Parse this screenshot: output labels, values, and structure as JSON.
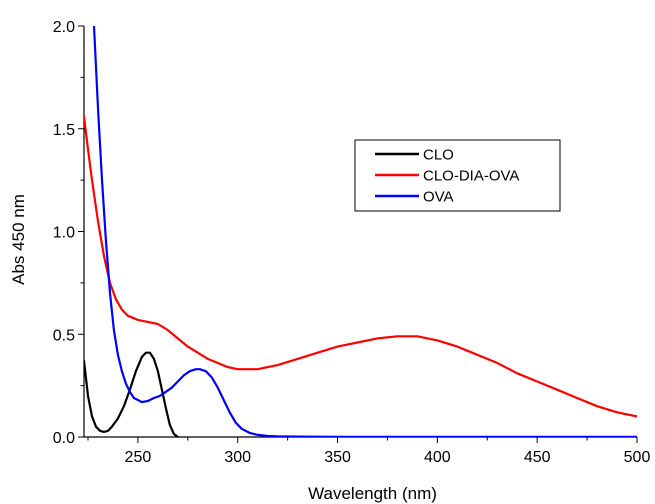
{
  "chart_data": {
    "type": "line",
    "xlabel": "Wavelength (nm)",
    "ylabel": "Abs 450 nm",
    "xlim": [
      223,
      500
    ],
    "ylim": [
      0,
      2.0
    ],
    "x_ticks": [
      250,
      300,
      350,
      400,
      450,
      500
    ],
    "x_tick_labels": [
      "250",
      "300",
      "350",
      "400",
      "450",
      "500"
    ],
    "y_ticks": [
      0,
      0.5,
      1.0,
      1.5,
      2.0
    ],
    "y_tick_labels": [
      "0.0",
      "0.5",
      "1.0",
      "1.5",
      "2.0"
    ],
    "grid": false,
    "legend_position": "upper-right",
    "series": [
      {
        "name": "CLO",
        "color": "#000000",
        "x": [
          223,
          225,
          227,
          229,
          231,
          233,
          235,
          237,
          240,
          243,
          246,
          249,
          252,
          254,
          256,
          258,
          260,
          262,
          264,
          266,
          268,
          270
        ],
        "y": [
          0.37,
          0.2,
          0.1,
          0.05,
          0.03,
          0.025,
          0.03,
          0.05,
          0.09,
          0.15,
          0.23,
          0.32,
          0.39,
          0.41,
          0.41,
          0.38,
          0.32,
          0.23,
          0.14,
          0.06,
          0.015,
          0.0
        ]
      },
      {
        "name": "CLO-DIA-OVA",
        "color": "#ff0000",
        "x": [
          223,
          225,
          227,
          230,
          233,
          236,
          239,
          242,
          245,
          250,
          255,
          260,
          265,
          270,
          275,
          280,
          285,
          290,
          295,
          300,
          310,
          320,
          330,
          340,
          350,
          360,
          370,
          380,
          385,
          390,
          400,
          410,
          420,
          430,
          440,
          450,
          460,
          470,
          480,
          490,
          500
        ],
        "y": [
          1.56,
          1.4,
          1.25,
          1.05,
          0.88,
          0.75,
          0.67,
          0.62,
          0.59,
          0.57,
          0.56,
          0.55,
          0.52,
          0.48,
          0.44,
          0.41,
          0.38,
          0.36,
          0.34,
          0.33,
          0.33,
          0.35,
          0.38,
          0.41,
          0.44,
          0.46,
          0.48,
          0.49,
          0.49,
          0.49,
          0.47,
          0.44,
          0.4,
          0.36,
          0.31,
          0.27,
          0.23,
          0.19,
          0.15,
          0.12,
          0.1
        ]
      },
      {
        "name": "OVA",
        "color": "#0000ff",
        "x": [
          228,
          230,
          232,
          234,
          236,
          238,
          240,
          242,
          244,
          246,
          248,
          250,
          252,
          255,
          258,
          261,
          264,
          267,
          270,
          273,
          276,
          279,
          281,
          284,
          287,
          290,
          293,
          296,
          299,
          302,
          306,
          310,
          315,
          320,
          330,
          350,
          400,
          450,
          500
        ],
        "y": [
          2.0,
          1.6,
          1.25,
          0.95,
          0.7,
          0.52,
          0.4,
          0.32,
          0.26,
          0.22,
          0.19,
          0.18,
          0.17,
          0.175,
          0.19,
          0.2,
          0.22,
          0.24,
          0.27,
          0.3,
          0.32,
          0.33,
          0.33,
          0.32,
          0.29,
          0.24,
          0.18,
          0.12,
          0.07,
          0.04,
          0.02,
          0.01,
          0.005,
          0.003,
          0.002,
          0.001,
          0.001,
          0.001,
          0.001
        ]
      }
    ]
  }
}
